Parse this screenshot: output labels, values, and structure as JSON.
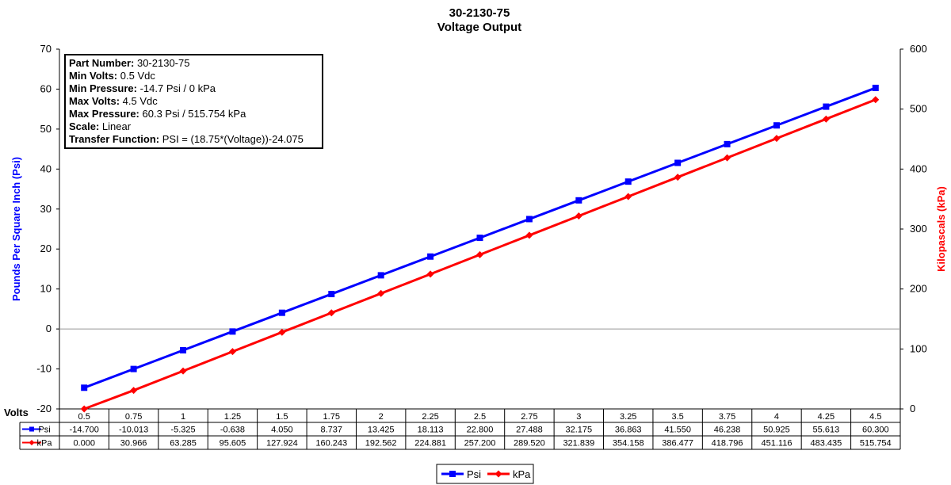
{
  "chart_data": {
    "type": "line",
    "title": "30-2130-75",
    "subtitle": "Voltage Output",
    "xlabel": "Volts",
    "ylabel": "Pounds Per Square Inch (Psi)",
    "y2label": "Kilopascals (kPa)",
    "ylim": [
      -20,
      70
    ],
    "y2lim": [
      0,
      600
    ],
    "y_ticks": [
      "-20",
      "-10",
      "0",
      "10",
      "20",
      "30",
      "40",
      "50",
      "60",
      "70"
    ],
    "y2_ticks": [
      "0",
      "100",
      "200",
      "300",
      "400",
      "500",
      "600"
    ],
    "x": [
      "0.5",
      "0.75",
      "1",
      "1.25",
      "1.5",
      "1.75",
      "2",
      "2.25",
      "2.5",
      "2.75",
      "3",
      "3.25",
      "3.5",
      "3.75",
      "4",
      "4.25",
      "4.5"
    ],
    "series": [
      {
        "name": "Psi",
        "axis": "left",
        "color": "#0000ff",
        "marker": "square",
        "values": [
          -14.7,
          -10.013,
          -5.325,
          -0.638,
          4.05,
          8.737,
          13.425,
          18.113,
          22.8,
          27.488,
          32.175,
          36.863,
          41.55,
          46.238,
          50.925,
          55.613,
          60.3
        ],
        "labels": [
          "-14.700",
          "-10.013",
          "-5.325",
          "-0.638",
          "4.050",
          "8.737",
          "13.425",
          "18.113",
          "22.800",
          "27.488",
          "32.175",
          "36.863",
          "41.550",
          "46.238",
          "50.925",
          "55.613",
          "60.300"
        ]
      },
      {
        "name": "kPa",
        "axis": "right",
        "color": "#ff0000",
        "marker": "diamond",
        "values": [
          0.0,
          30.966,
          63.285,
          95.605,
          127.924,
          160.243,
          192.562,
          224.881,
          257.2,
          289.52,
          321.839,
          354.158,
          386.477,
          418.796,
          451.116,
          483.435,
          515.754
        ],
        "labels": [
          "0.000",
          "30.966",
          "63.285",
          "95.605",
          "127.924",
          "160.243",
          "192.562",
          "224.881",
          "257.200",
          "289.520",
          "321.839",
          "354.158",
          "386.477",
          "418.796",
          "451.116",
          "483.435",
          "515.754"
        ]
      }
    ],
    "info_box": [
      {
        "label": "Part Number:",
        "value": "30-2130-75"
      },
      {
        "label": "Min Volts:",
        "value": "0.5 Vdc"
      },
      {
        "label": "Min Pressure:",
        "value": "-14.7 Psi / 0 kPa"
      },
      {
        "label": "Max Volts:",
        "value": "4.5 Vdc"
      },
      {
        "label": "Max Pressure:",
        "value": "60.3 Psi / 515.754 kPa"
      },
      {
        "label": "Scale:",
        "value": "Linear"
      },
      {
        "label": "Transfer Function:",
        "value": "PSI = (18.75*(Voltage))-24.075"
      }
    ],
    "grid": false,
    "legend": "bottom-center",
    "colors": {
      "left_axis_title": "#0000ff",
      "right_axis_title": "#ff0000",
      "zero_line": "#999999"
    }
  }
}
